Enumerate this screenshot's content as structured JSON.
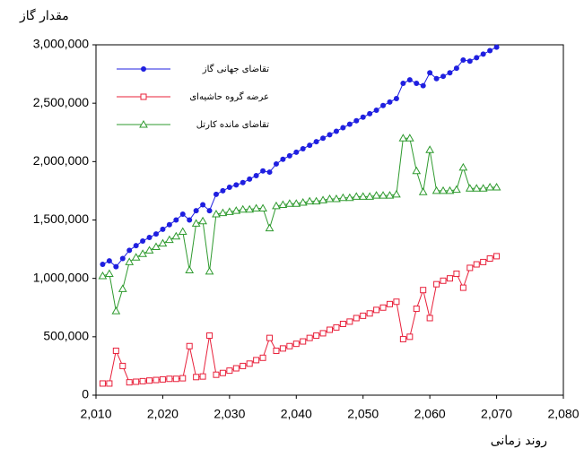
{
  "chart_data": {
    "type": "line",
    "y_label": "مقدار گاز",
    "x_label": "روند زمانی",
    "x": [
      2011,
      2012,
      2013,
      2014,
      2015,
      2016,
      2017,
      2018,
      2019,
      2020,
      2021,
      2022,
      2023,
      2024,
      2025,
      2026,
      2027,
      2028,
      2029,
      2030,
      2031,
      2032,
      2033,
      2034,
      2035,
      2036,
      2037,
      2038,
      2039,
      2040,
      2041,
      2042,
      2043,
      2044,
      2045,
      2046,
      2047,
      2048,
      2049,
      2050,
      2051,
      2052,
      2053,
      2054,
      2055,
      2056,
      2057,
      2058,
      2059,
      2060,
      2061,
      2062,
      2063,
      2064,
      2065,
      2066,
      2067,
      2068,
      2069,
      2070
    ],
    "series": [
      {
        "name": "تقاضای جهانی گاز",
        "color": "#1f1fe0",
        "marker": "circle",
        "values": [
          1120000,
          1150000,
          1100000,
          1170000,
          1240000,
          1280000,
          1320000,
          1350000,
          1380000,
          1420000,
          1460000,
          1500000,
          1550000,
          1500000,
          1580000,
          1630000,
          1580000,
          1720000,
          1750000,
          1780000,
          1800000,
          1820000,
          1850000,
          1880000,
          1920000,
          1910000,
          1980000,
          2020000,
          2050000,
          2080000,
          2110000,
          2140000,
          2170000,
          2200000,
          2230000,
          2260000,
          2290000,
          2320000,
          2350000,
          2380000,
          2410000,
          2440000,
          2480000,
          2510000,
          2540000,
          2670000,
          2700000,
          2670000,
          2650000,
          2760000,
          2710000,
          2730000,
          2760000,
          2800000,
          2870000,
          2860000,
          2890000,
          2920000,
          2950000,
          2980000
        ]
      },
      {
        "name": "عرضه گروه حاشیه‌ای",
        "color": "#e8203a",
        "marker": "square",
        "values": [
          100000,
          100000,
          380000,
          250000,
          110000,
          115000,
          120000,
          125000,
          130000,
          135000,
          140000,
          140000,
          145000,
          420000,
          155000,
          160000,
          510000,
          175000,
          190000,
          210000,
          230000,
          250000,
          270000,
          300000,
          320000,
          490000,
          380000,
          400000,
          420000,
          440000,
          460000,
          490000,
          510000,
          530000,
          560000,
          580000,
          610000,
          630000,
          660000,
          680000,
          700000,
          730000,
          750000,
          780000,
          800000,
          480000,
          500000,
          740000,
          900000,
          660000,
          950000,
          980000,
          1000000,
          1040000,
          920000,
          1090000,
          1120000,
          1140000,
          1170000,
          1190000
        ]
      },
      {
        "name": "تقاضای مانده کارتل",
        "color": "#2e9a2e",
        "marker": "triangle",
        "values": [
          1020000,
          1040000,
          720000,
          910000,
          1140000,
          1180000,
          1210000,
          1240000,
          1270000,
          1300000,
          1330000,
          1360000,
          1400000,
          1070000,
          1470000,
          1490000,
          1060000,
          1550000,
          1560000,
          1570000,
          1580000,
          1590000,
          1590000,
          1600000,
          1600000,
          1430000,
          1620000,
          1630000,
          1640000,
          1640000,
          1650000,
          1660000,
          1660000,
          1670000,
          1680000,
          1680000,
          1690000,
          1690000,
          1700000,
          1700000,
          1700000,
          1710000,
          1710000,
          1710000,
          1720000,
          2200000,
          2200000,
          1920000,
          1740000,
          2100000,
          1750000,
          1750000,
          1750000,
          1760000,
          1950000,
          1770000,
          1770000,
          1770000,
          1780000,
          1780000
        ]
      }
    ],
    "xlim": [
      2010,
      2080
    ],
    "xticks": [
      {
        "value": 2010,
        "label": "2,010"
      },
      {
        "value": 2020,
        "label": "2,020"
      },
      {
        "value": 2030,
        "label": "2,030"
      },
      {
        "value": 2040,
        "label": "2,040"
      },
      {
        "value": 2050,
        "label": "2,050"
      },
      {
        "value": 2060,
        "label": "2,060"
      },
      {
        "value": 2070,
        "label": "2,070"
      },
      {
        "value": 2080,
        "label": "2,080"
      }
    ],
    "ylim": [
      0,
      3000000
    ],
    "yticks": [
      0,
      {
        "value": 500000,
        "label": "500,000"
      },
      {
        "value": 1000000,
        "label": "1,000,000"
      },
      {
        "value": 1500000,
        "label": "1,500,000"
      },
      {
        "value": 2000000,
        "label": "2,000,000"
      },
      {
        "value": 2500000,
        "label": "2,500,000"
      },
      {
        "value": 3000000,
        "label": "3,000,000"
      }
    ],
    "grid": false,
    "legend": "upper-left"
  }
}
